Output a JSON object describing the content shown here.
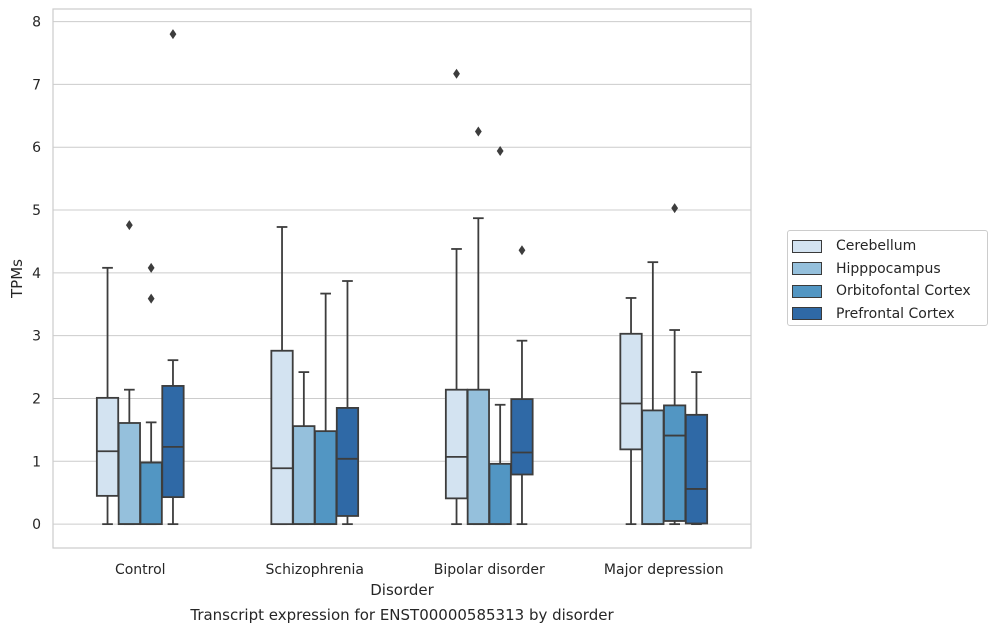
{
  "chart_data": {
    "type": "box",
    "title": "",
    "caption": "Transcript expression for ENST00000585313 by disorder",
    "xlabel": "Disorder",
    "ylabel": "TPMs",
    "ylim": [
      -0.38,
      8.2
    ],
    "yticks": [
      "0",
      "1",
      "2",
      "3",
      "4",
      "5",
      "6",
      "7",
      "8"
    ],
    "grid": "horizontal",
    "legend_position": "right",
    "categories": [
      "Control",
      "Schizophrenia",
      "Bipolar disorder",
      "Major depression"
    ],
    "series": [
      {
        "name": "Cerebellum",
        "color": "#d3e3f1",
        "boxes": [
          {
            "q1": 0.45,
            "median": 1.16,
            "q3": 2.01,
            "whisker_low": 0.0,
            "whisker_high": 4.08,
            "outliers": []
          },
          {
            "q1": 0.0,
            "median": 0.89,
            "q3": 2.76,
            "whisker_low": 0.0,
            "whisker_high": 4.73,
            "outliers": []
          },
          {
            "q1": 0.41,
            "median": 1.07,
            "q3": 2.14,
            "whisker_low": 0.0,
            "whisker_high": 4.38,
            "outliers": [
              7.17
            ]
          },
          {
            "q1": 1.19,
            "median": 1.92,
            "q3": 3.03,
            "whisker_low": 0.0,
            "whisker_high": 3.6,
            "outliers": []
          }
        ]
      },
      {
        "name": "Hipppocampus",
        "color": "#95c0dc",
        "boxes": [
          {
            "q1": 0.0,
            "median": 0.0,
            "q3": 1.61,
            "whisker_low": 0.0,
            "whisker_high": 2.14,
            "outliers": [
              4.76
            ]
          },
          {
            "q1": 0.0,
            "median": 0.0,
            "q3": 1.56,
            "whisker_low": 0.0,
            "whisker_high": 2.42,
            "outliers": []
          },
          {
            "q1": 0.0,
            "median": 0.0,
            "q3": 2.14,
            "whisker_low": 0.0,
            "whisker_high": 4.87,
            "outliers": [
              6.25
            ]
          },
          {
            "q1": 0.0,
            "median": 0.0,
            "q3": 1.81,
            "whisker_low": 0.0,
            "whisker_high": 4.17,
            "outliers": []
          }
        ]
      },
      {
        "name": "Orbitofontal Cortex",
        "color": "#5296c3",
        "boxes": [
          {
            "q1": 0.0,
            "median": 0.98,
            "q3": 0.98,
            "whisker_low": 0.0,
            "whisker_high": 1.62,
            "outliers": [
              4.08,
              3.59
            ]
          },
          {
            "q1": 0.0,
            "median": 0.0,
            "q3": 1.48,
            "whisker_low": 0.0,
            "whisker_high": 3.67,
            "outliers": []
          },
          {
            "q1": 0.0,
            "median": 0.0,
            "q3": 0.96,
            "whisker_low": 0.0,
            "whisker_high": 1.9,
            "outliers": [
              5.94
            ]
          },
          {
            "q1": 0.05,
            "median": 1.41,
            "q3": 1.89,
            "whisker_low": 0.0,
            "whisker_high": 3.09,
            "outliers": [
              5.03
            ]
          }
        ]
      },
      {
        "name": "Prefrontal Cortex",
        "color": "#2f69a6",
        "boxes": [
          {
            "q1": 0.43,
            "median": 1.23,
            "q3": 2.2,
            "whisker_low": 0.0,
            "whisker_high": 2.61,
            "outliers": [
              7.8
            ]
          },
          {
            "q1": 0.13,
            "median": 1.04,
            "q3": 1.85,
            "whisker_low": 0.0,
            "whisker_high": 3.87,
            "outliers": []
          },
          {
            "q1": 0.79,
            "median": 1.14,
            "q3": 1.99,
            "whisker_low": 0.0,
            "whisker_high": 2.92,
            "outliers": [
              4.36
            ]
          },
          {
            "q1": 0.01,
            "median": 0.56,
            "q3": 1.74,
            "whisker_low": 0.0,
            "whisker_high": 2.42,
            "outliers": []
          }
        ]
      }
    ]
  }
}
